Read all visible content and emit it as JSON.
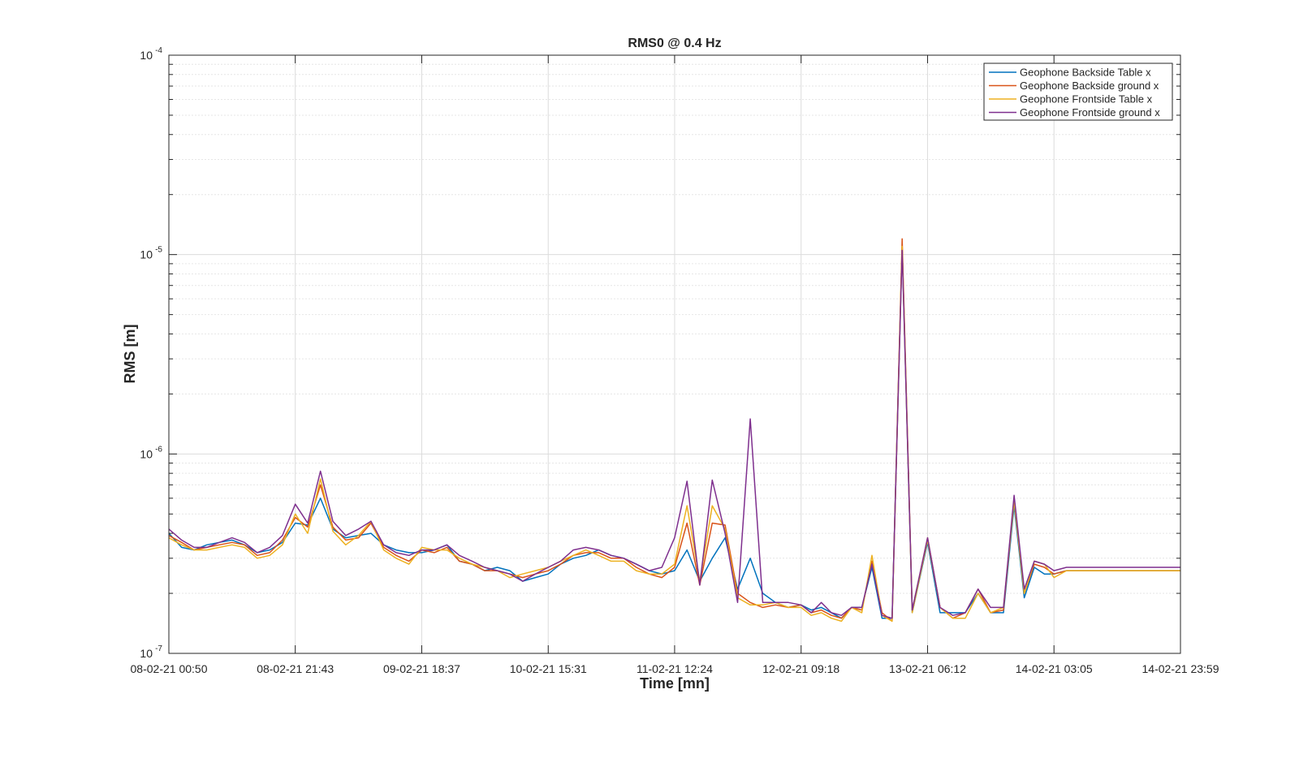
{
  "chart_data": {
    "type": "line",
    "title": "RMS0 @ 0.4 Hz",
    "xlabel": "Time [mn]",
    "ylabel": "RMS [m]",
    "y_scale": "log",
    "ylim": [
      1e-07,
      0.0001
    ],
    "xlim": [
      "08-02-21 00:50",
      "14-02-21 23:59"
    ],
    "x_ticks": [
      "08-02-21 00:50",
      "08-02-21 21:43",
      "09-02-21 18:37",
      "10-02-21 15:31",
      "11-02-21 12:24",
      "12-02-21 09:18",
      "13-02-21 06:12",
      "14-02-21 03:05",
      "14-02-21 23:59"
    ],
    "y_ticks": [
      {
        "base": "10",
        "exp": "-7"
      },
      {
        "base": "10",
        "exp": "-6"
      },
      {
        "base": "10",
        "exp": "-5"
      },
      {
        "base": "10",
        "exp": "-4"
      }
    ],
    "grid": true,
    "legend_position": "top-right",
    "x": [
      "08-02-21 00:50",
      "08-02-21 02:56",
      "08-02-21 05:00",
      "08-02-21 07:06",
      "08-02-21 09:10",
      "08-02-21 11:16",
      "08-02-21 13:20",
      "08-02-21 15:26",
      "08-02-21 17:30",
      "08-02-21 19:36",
      "08-02-21 21:43",
      "08-02-21 23:46",
      "09-02-21 01:53",
      "09-02-21 03:56",
      "09-02-21 06:03",
      "09-02-21 08:10",
      "09-02-21 10:13",
      "09-02-21 12:20",
      "09-02-21 14:23",
      "09-02-21 16:30",
      "09-02-21 18:37",
      "09-02-21 20:40",
      "09-02-21 22:47",
      "10-02-21 00:50",
      "10-02-21 02:56",
      "10-02-21 05:00",
      "10-02-21 07:06",
      "10-02-21 09:10",
      "10-02-21 11:17",
      "10-02-21 13:24",
      "10-02-21 15:31",
      "10-02-21 17:34",
      "10-02-21 19:40",
      "10-02-21 21:44",
      "10-02-21 23:51",
      "11-02-21 01:54",
      "11-02-21 04:00",
      "11-02-21 06:04",
      "11-02-21 08:11",
      "11-02-21 10:17",
      "11-02-21 12:24",
      "11-02-21 14:27",
      "11-02-21 16:33",
      "11-02-21 18:37",
      "11-02-21 20:44",
      "11-02-21 22:48",
      "12-02-21 00:54",
      "12-02-21 02:58",
      "12-02-21 05:04",
      "12-02-21 07:11",
      "12-02-21 09:18",
      "12-02-21 10:58",
      "12-02-21 12:38",
      "12-02-21 14:18",
      "12-02-21 15:58",
      "12-02-21 17:38",
      "12-02-21 19:20",
      "12-02-21 21:00",
      "12-02-21 22:40",
      "13-02-21 00:20",
      "13-02-21 02:00",
      "13-02-21 03:40",
      "13-02-21 06:12",
      "13-02-21 08:16",
      "13-02-21 10:22",
      "13-02-21 12:26",
      "13-02-21 14:32",
      "13-02-21 16:36",
      "13-02-21 18:44",
      "13-02-21 20:30",
      "13-02-21 22:10",
      "13-02-21 23:50",
      "14-02-21 01:30",
      "14-02-21 03:05",
      "14-02-21 05:09",
      "14-02-21 07:15",
      "14-02-21 09:19",
      "14-02-21 11:26",
      "14-02-21 13:30",
      "14-02-21 15:36",
      "14-02-21 17:40",
      "14-02-21 19:46",
      "14-02-21 21:50",
      "14-02-21 23:59"
    ],
    "series": [
      {
        "name": "Geophone Backside Table x",
        "color": "#0072BD",
        "values": [
          4e-07,
          3.4e-07,
          3.3e-07,
          3.5e-07,
          3.6e-07,
          3.7e-07,
          3.5e-07,
          3.2e-07,
          3.3e-07,
          3.6e-07,
          4.5e-07,
          4.4e-07,
          6e-07,
          4.2e-07,
          3.8e-07,
          3.9e-07,
          4e-07,
          3.5e-07,
          3.3e-07,
          3.2e-07,
          3.2e-07,
          3.3e-07,
          3.5e-07,
          2.9e-07,
          2.8e-07,
          2.6e-07,
          2.7e-07,
          2.6e-07,
          2.3e-07,
          2.4e-07,
          2.5e-07,
          2.8e-07,
          3e-07,
          3.1e-07,
          3.3e-07,
          3.1e-07,
          3e-07,
          2.8e-07,
          2.6e-07,
          2.5e-07,
          2.6e-07,
          3.3e-07,
          2.3e-07,
          3e-07,
          3.8e-07,
          2.1e-07,
          3e-07,
          2e-07,
          1.8e-07,
          1.7e-07,
          1.75e-07,
          1.65e-07,
          1.7e-07,
          1.6e-07,
          1.5e-07,
          1.7e-07,
          1.7e-07,
          2.7e-07,
          1.5e-07,
          1.5e-07,
          1.1e-05,
          1.6e-07,
          3.6e-07,
          1.6e-07,
          1.6e-07,
          1.6e-07,
          2e-07,
          1.6e-07,
          1.6e-07,
          5.5e-07,
          1.9e-07,
          2.7e-07,
          2.5e-07,
          2.5e-07,
          2.6e-07,
          2.6e-07,
          2.6e-07,
          2.6e-07,
          2.6e-07,
          2.6e-07,
          2.6e-07,
          2.6e-07,
          2.6e-07,
          2.6e-07
        ]
      },
      {
        "name": "Geophone Backside ground x",
        "color": "#D95319",
        "values": [
          3.9e-07,
          3.6e-07,
          3.3e-07,
          3.4e-07,
          3.5e-07,
          3.6e-07,
          3.5e-07,
          3.1e-07,
          3.2e-07,
          3.7e-07,
          4.8e-07,
          4.3e-07,
          7e-07,
          4.3e-07,
          3.7e-07,
          3.8e-07,
          4.5e-07,
          3.4e-07,
          3.1e-07,
          2.9e-07,
          3.3e-07,
          3.2e-07,
          3.4e-07,
          2.9e-07,
          2.8e-07,
          2.6e-07,
          2.6e-07,
          2.5e-07,
          2.4e-07,
          2.5e-07,
          2.6e-07,
          2.8e-07,
          3.1e-07,
          3.2e-07,
          3.2e-07,
          3e-07,
          3e-07,
          2.7e-07,
          2.5e-07,
          2.4e-07,
          2.7e-07,
          4.5e-07,
          2.2e-07,
          4.5e-07,
          4.4e-07,
          2e-07,
          1.8e-07,
          1.7e-07,
          1.75e-07,
          1.7e-07,
          1.75e-07,
          1.6e-07,
          1.65e-07,
          1.55e-07,
          1.5e-07,
          1.7e-07,
          1.65e-07,
          2.9e-07,
          1.6e-07,
          1.45e-07,
          1.2e-05,
          1.65e-07,
          3.8e-07,
          1.7e-07,
          1.5e-07,
          1.6e-07,
          2.1e-07,
          1.6e-07,
          1.65e-07,
          6e-07,
          2e-07,
          2.8e-07,
          2.7e-07,
          2.5e-07,
          2.6e-07,
          2.6e-07,
          2.6e-07,
          2.6e-07,
          2.6e-07,
          2.6e-07,
          2.6e-07,
          2.6e-07,
          2.6e-07,
          2.6e-07
        ]
      },
      {
        "name": "Geophone Frontside Table x",
        "color": "#EDB120",
        "values": [
          3.8e-07,
          3.5e-07,
          3.3e-07,
          3.3e-07,
          3.4e-07,
          3.5e-07,
          3.4e-07,
          3e-07,
          3.1e-07,
          3.5e-07,
          5e-07,
          4e-07,
          7.5e-07,
          4.1e-07,
          3.5e-07,
          3.9e-07,
          4.6e-07,
          3.3e-07,
          3e-07,
          2.8e-07,
          3.4e-07,
          3.3e-07,
          3.3e-07,
          3e-07,
          2.8e-07,
          2.7e-07,
          2.6e-07,
          2.4e-07,
          2.5e-07,
          2.6e-07,
          2.7e-07,
          2.9e-07,
          3.1e-07,
          3.3e-07,
          3.1e-07,
          2.9e-07,
          2.9e-07,
          2.6e-07,
          2.5e-07,
          2.5e-07,
          2.8e-07,
          5.5e-07,
          2.3e-07,
          5.5e-07,
          4.2e-07,
          1.9e-07,
          1.75e-07,
          1.75e-07,
          1.8e-07,
          1.7e-07,
          1.7e-07,
          1.55e-07,
          1.6e-07,
          1.5e-07,
          1.45e-07,
          1.7e-07,
          1.6e-07,
          3.1e-07,
          1.55e-07,
          1.45e-07,
          1.1e-05,
          1.6e-07,
          3.7e-07,
          1.7e-07,
          1.5e-07,
          1.5e-07,
          2e-07,
          1.6e-07,
          1.7e-07,
          5.8e-07,
          2e-07,
          2.9e-07,
          2.8e-07,
          2.4e-07,
          2.6e-07,
          2.6e-07,
          2.6e-07,
          2.6e-07,
          2.6e-07,
          2.6e-07,
          2.6e-07,
          2.6e-07,
          2.6e-07,
          2.6e-07
        ]
      },
      {
        "name": "Geophone Frontside ground x",
        "color": "#7E2F8E",
        "values": [
          4.2e-07,
          3.7e-07,
          3.4e-07,
          3.4e-07,
          3.6e-07,
          3.8e-07,
          3.6e-07,
          3.2e-07,
          3.4e-07,
          3.9e-07,
          5.6e-07,
          4.5e-07,
          8.2e-07,
          4.6e-07,
          3.9e-07,
          4.2e-07,
          4.6e-07,
          3.5e-07,
          3.2e-07,
          3.1e-07,
          3.3e-07,
          3.3e-07,
          3.5e-07,
          3.1e-07,
          2.9e-07,
          2.7e-07,
          2.6e-07,
          2.5e-07,
          2.3e-07,
          2.5e-07,
          2.7e-07,
          2.9e-07,
          3.3e-07,
          3.4e-07,
          3.3e-07,
          3.1e-07,
          3e-07,
          2.8e-07,
          2.6e-07,
          2.7e-07,
          3.8e-07,
          7.3e-07,
          2.2e-07,
          7.4e-07,
          4e-07,
          1.8e-07,
          1.5e-06,
          1.8e-07,
          1.8e-07,
          1.8e-07,
          1.75e-07,
          1.6e-07,
          1.8e-07,
          1.6e-07,
          1.55e-07,
          1.7e-07,
          1.7e-07,
          2.8e-07,
          1.55e-07,
          1.5e-07,
          1.05e-05,
          1.65e-07,
          3.8e-07,
          1.7e-07,
          1.55e-07,
          1.6e-07,
          2.1e-07,
          1.7e-07,
          1.7e-07,
          6.2e-07,
          2.1e-07,
          2.9e-07,
          2.8e-07,
          2.6e-07,
          2.7e-07,
          2.7e-07,
          2.7e-07,
          2.7e-07,
          2.7e-07,
          2.7e-07,
          2.7e-07,
          2.7e-07,
          2.7e-07,
          2.7e-07
        ]
      }
    ]
  }
}
